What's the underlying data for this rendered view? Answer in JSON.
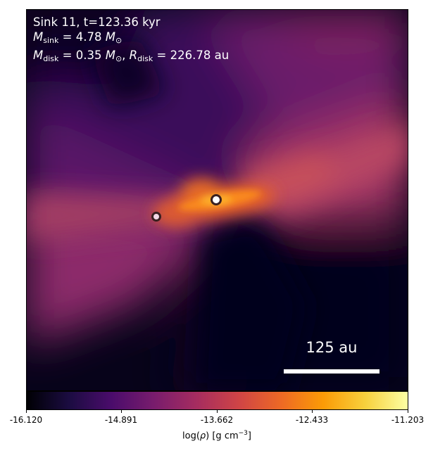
{
  "annotation": {
    "line1": "Sink 11, t=123.36 kyr",
    "msink_symbol": "M",
    "msink_sub": "sink",
    "msink_value": "= 4.78",
    "msink_unit": "M",
    "msink_unit_sub": "⊙",
    "mdisk_symbol": "M",
    "mdisk_sub": "disk",
    "mdisk_value": "= 0.35",
    "mdisk_unit": "M",
    "mdisk_unit_sub": "⊙",
    "rdisk_symbol": "R",
    "rdisk_sub": "disk",
    "rdisk_value": "= 226.78 au"
  },
  "scalebar": {
    "label": "125 au"
  },
  "colorbar": {
    "colormap": "inferno",
    "label_prefix": "log(",
    "label_rho": "ρ",
    "label_units": ") [g cm",
    "label_exp": "−3",
    "label_suffix": "]",
    "vmin": -16.12,
    "vmax": -11.203,
    "ticks": [
      "-16.120",
      "-14.891",
      "-13.662",
      "-12.433",
      "-11.203"
    ]
  },
  "colors": {
    "background_dark": "#07031a",
    "accent_orange": "#f9741a",
    "accent_magenta": "#8a2366",
    "sink_marker": "#ffffff"
  }
}
